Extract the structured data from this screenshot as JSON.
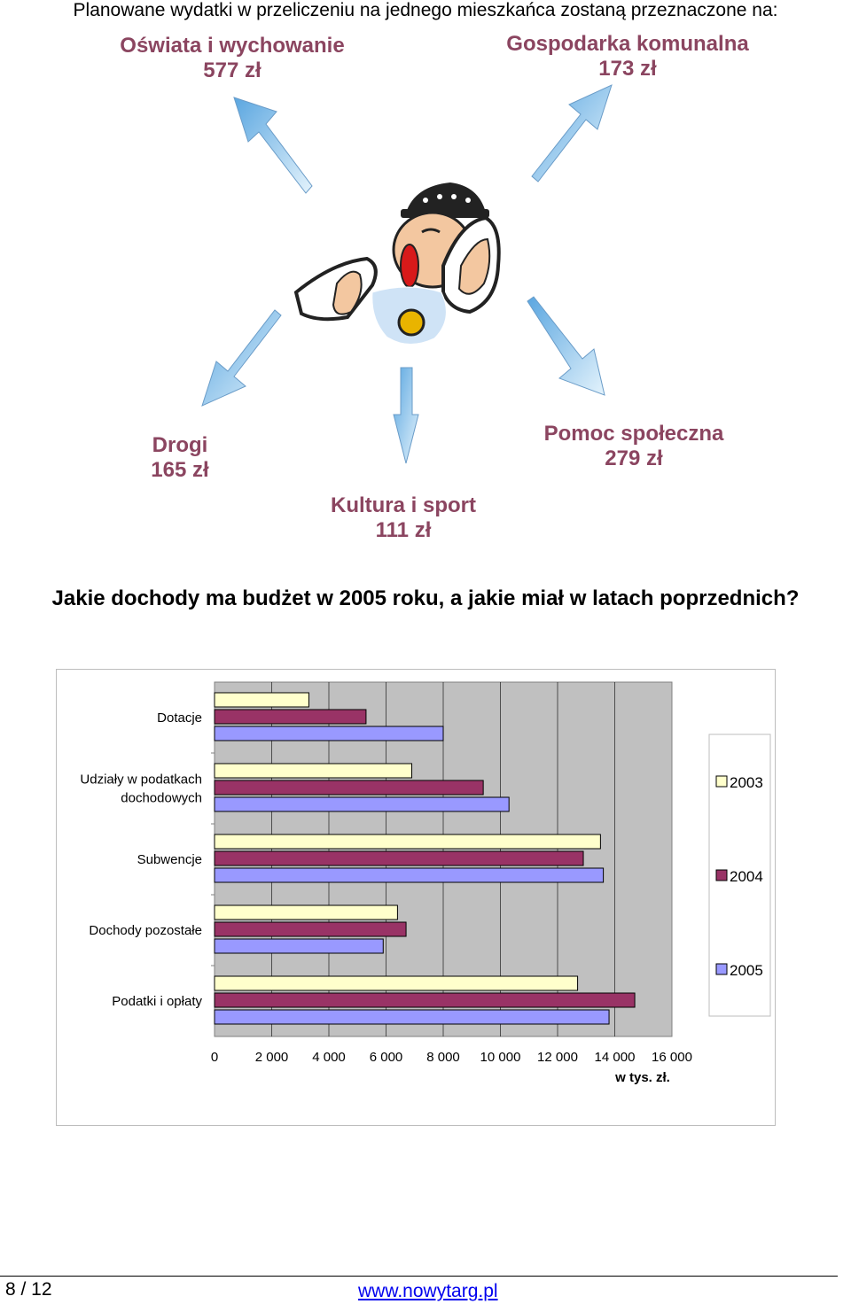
{
  "intro": {
    "text": "Planowane wydatki w przeliczeniu na jednego mieszkańca zostaną przeznaczone na:"
  },
  "categories": [
    {
      "name": "Oświata i wychowanie",
      "amount": "577 zł"
    },
    {
      "name": "Gospodarka komunalna",
      "amount": "173 zł"
    },
    {
      "name": "Drogi",
      "amount": "165 zł"
    },
    {
      "name": "Kultura i sport",
      "amount": "111 zł"
    },
    {
      "name": "Pomoc społeczna",
      "amount": "279 zł"
    }
  ],
  "question": "Jakie dochody ma budżet w 2005 roku, a jakie miał w latach poprzednich?",
  "colors": {
    "category_text": "#8b4560",
    "arrow_fill": "#9fd0f0",
    "bar_2003": "#ffffcc",
    "bar_2004": "#993366",
    "bar_2005": "#9999ff",
    "plot_bg": "#c0c0c0"
  },
  "chart_data": {
    "type": "bar",
    "orientation": "horizontal",
    "categories": [
      "Dotacje",
      "Udziały w podatkach dochodowych",
      "Subwencje",
      "Dochody pozostałe",
      "Podatki i opłaty"
    ],
    "category_lines": [
      [
        "Dotacje"
      ],
      [
        "Udziały w podatkach",
        "dochodowych"
      ],
      [
        "Subwencje"
      ],
      [
        "Dochody pozostałe"
      ],
      [
        "Podatki i opłaty"
      ]
    ],
    "series": [
      {
        "name": "2003",
        "values": [
          3300,
          6900,
          13500,
          6400,
          12700
        ]
      },
      {
        "name": "2004",
        "values": [
          5300,
          9400,
          12900,
          6700,
          14700
        ]
      },
      {
        "name": "2005",
        "values": [
          8000,
          10300,
          13600,
          5900,
          13800
        ]
      }
    ],
    "xlim": [
      0,
      16000
    ],
    "xticks": [
      "0",
      "2 000",
      "4 000",
      "6 000",
      "8 000",
      "10 000",
      "12 000",
      "14 000",
      "16 000"
    ],
    "xlabel": "w tys. zł.",
    "ylabel": "",
    "grid": true,
    "legend_position": "right"
  },
  "footer": {
    "page": "8 / 12",
    "link": "www.nowytarg.pl"
  }
}
